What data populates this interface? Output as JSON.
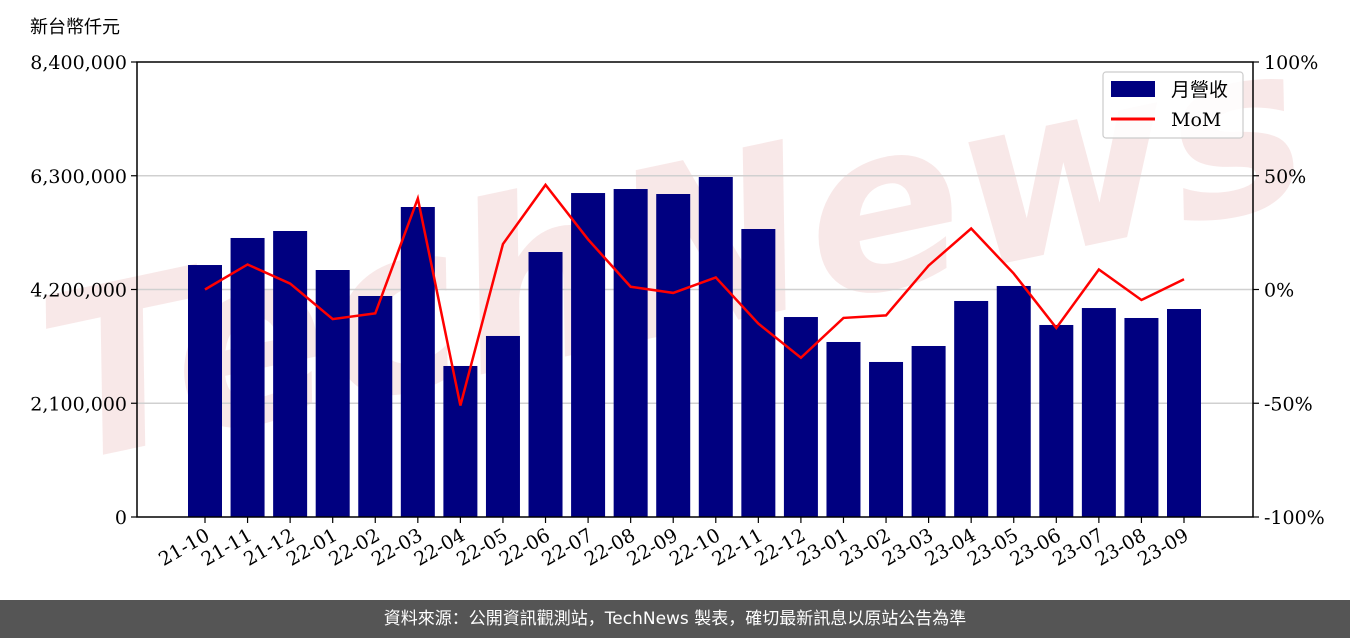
{
  "chart_data": {
    "type": "bar+line",
    "ylabel": "新台幣仟元",
    "categories": [
      "21-10",
      "21-11",
      "21-12",
      "22-01",
      "22-02",
      "22-03",
      "22-04",
      "22-05",
      "22-06",
      "22-07",
      "22-08",
      "22-09",
      "22-10",
      "22-11",
      "22-12",
      "23-01",
      "23-02",
      "23-03",
      "23-04",
      "23-05",
      "23-06",
      "23-07",
      "23-08",
      "23-09"
    ],
    "series": [
      {
        "name": "月營收",
        "type": "bar",
        "axis": "left",
        "color": "#000080",
        "values": [
          4652000,
          5151000,
          5280000,
          4560000,
          4080000,
          5723000,
          2788000,
          3342000,
          4892000,
          5981000,
          6055000,
          5963000,
          6277000,
          5317000,
          3692000,
          3231000,
          2862000,
          3157000,
          3988000,
          4265000,
          3545000,
          3858000,
          3674000,
          3840000
        ]
      },
      {
        "name": "MoM",
        "type": "line",
        "axis": "right",
        "color": "#ff0000",
        "values": [
          0,
          11,
          2.6,
          -13,
          -10.5,
          40,
          -51,
          20,
          46,
          22,
          1.2,
          -1.5,
          5.3,
          -15,
          -30,
          -12.5,
          -11.4,
          10.5,
          26.8,
          7,
          -16.9,
          8.8,
          -4.6,
          4.5
        ]
      }
    ],
    "y_left": {
      "lim": [
        0,
        8400000
      ],
      "ticks": [
        "0",
        "2,100,000",
        "4,200,000",
        "6,300,000",
        "8,400,000"
      ],
      "tick_values": [
        0,
        2100000,
        4200000,
        6300000,
        8400000
      ]
    },
    "y_right": {
      "lim": [
        -100,
        100
      ],
      "ticks": [
        "-100%",
        "-50%",
        "0%",
        "50%",
        "100%"
      ],
      "tick_values": [
        -100,
        -50,
        0,
        50,
        100
      ]
    },
    "grid": "horizontal",
    "legend": "top-right"
  },
  "watermark": "TechNews",
  "footer": "資料來源：公開資訊觀測站，TechNews 製表，確切最新訊息以原站公告為準"
}
